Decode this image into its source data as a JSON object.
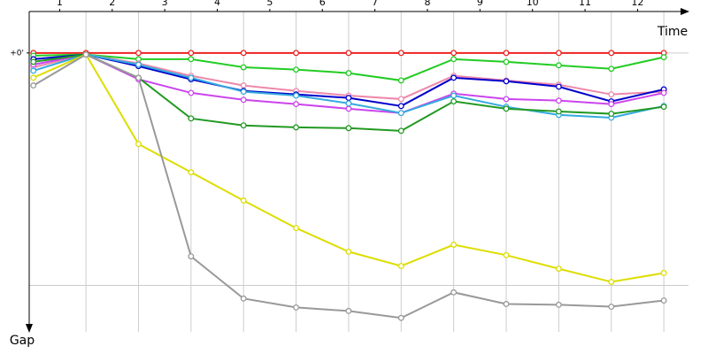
{
  "chart_data": {
    "type": "line",
    "x_label": "Time",
    "y_label": "Gap",
    "x": [
      0,
      1,
      2,
      3,
      4,
      5,
      6,
      7,
      8,
      9,
      10,
      11,
      12
    ],
    "xlim": [
      -0.08,
      12.47
    ],
    "xticks": [
      {
        "value": 0.5,
        "label": "1"
      },
      {
        "value": 1.5,
        "label": "2"
      },
      {
        "value": 2.5,
        "label": "3"
      },
      {
        "value": 3.5,
        "label": "4"
      },
      {
        "value": 4.5,
        "label": "5"
      },
      {
        "value": 5.5,
        "label": "6"
      },
      {
        "value": 6.5,
        "label": "7"
      },
      {
        "value": 7.5,
        "label": "8"
      },
      {
        "value": 8.5,
        "label": "9"
      },
      {
        "value": 9.5,
        "label": "10"
      },
      {
        "value": 10.5,
        "label": "11"
      },
      {
        "value": 11.5,
        "label": "12"
      }
    ],
    "x_grid_lines": [
      1,
      2,
      3,
      4,
      5,
      6,
      7,
      8,
      9,
      10,
      11,
      12
    ],
    "ylim": [
      -10.7,
      72
    ],
    "y_inverted": true,
    "yticks": [
      {
        "value": 0,
        "label": "+0'"
      }
    ],
    "y_grid_lines": [
      0,
      60
    ],
    "series": [
      {
        "color": "#ee2222",
        "values": [
          0,
          0,
          0,
          0,
          0,
          0,
          0,
          0,
          0,
          0,
          0,
          0,
          0
        ]
      },
      {
        "color": "#22cc22",
        "values": [
          0.7,
          0.4,
          1.6,
          1.6,
          3.7,
          4.3,
          5.2,
          7.1,
          1.6,
          2.3,
          3.2,
          4.1,
          1.1
        ]
      },
      {
        "color": "#ee88aa",
        "values": [
          3.7,
          0.4,
          2.7,
          5.9,
          8.4,
          9.8,
          11.0,
          11.9,
          5.9,
          7.1,
          8.2,
          10.7,
          10.0
        ]
      },
      {
        "color": "#0000cc",
        "values": [
          1.6,
          0.4,
          3.4,
          6.8,
          9.8,
          10.7,
          11.6,
          13.7,
          6.4,
          7.3,
          8.7,
          12.5,
          9.4
        ]
      },
      {
        "color": "#cc44ee",
        "values": [
          3.0,
          0.4,
          6.8,
          10.3,
          12.1,
          13.2,
          14.4,
          15.5,
          10.5,
          11.9,
          12.3,
          13.2,
          10.3
        ]
      },
      {
        "color": "#33aadd",
        "values": [
          4.6,
          0.4,
          3.0,
          6.4,
          10.0,
          11.0,
          13.0,
          15.5,
          11.0,
          13.9,
          16.0,
          16.7,
          13.7
        ]
      },
      {
        "color": "#229922",
        "values": [
          2.3,
          0.4,
          6.4,
          16.9,
          18.7,
          19.2,
          19.4,
          20.1,
          12.5,
          14.4,
          15.1,
          15.7,
          13.9
        ]
      },
      {
        "color": "#dddd00",
        "values": [
          6.4,
          0.4,
          23.5,
          30.8,
          38.1,
          45.2,
          51.3,
          55.0,
          49.5,
          52.2,
          55.7,
          59.1,
          56.8
        ]
      },
      {
        "color": "#999999",
        "values": [
          8.4,
          0.4,
          6.4,
          52.5,
          63.4,
          65.7,
          66.6,
          68.4,
          61.8,
          64.8,
          65.0,
          65.5,
          63.9
        ]
      }
    ]
  }
}
